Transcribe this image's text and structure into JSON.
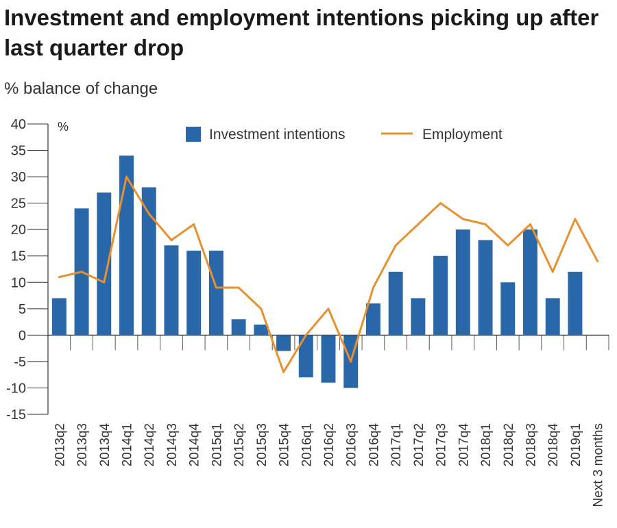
{
  "title": "Investment and employment intentions picking up after last quarter drop",
  "subtitle": "% balance of change",
  "chart_data": {
    "type": "bar",
    "unit_label": "%",
    "categories": [
      "2013q2",
      "2013q3",
      "2013q4",
      "2014q1",
      "2014q2",
      "2014q3",
      "2014q4",
      "2015q1",
      "2015q2",
      "2015q3",
      "2015q4",
      "2016q1",
      "2016q2",
      "2016q3",
      "2016q4",
      "2017q1",
      "2017q2",
      "2017q3",
      "2017q4",
      "2018q1",
      "2018q2",
      "2018q3",
      "2018q4",
      "2019q1",
      "Next 3 months"
    ],
    "series": [
      {
        "name": "Investment intentions",
        "type": "bar",
        "color": "#2a67a8",
        "values": [
          7,
          24,
          27,
          34,
          28,
          17,
          16,
          16,
          3,
          2,
          -3,
          -8,
          -9,
          -10,
          6,
          12,
          7,
          15,
          20,
          18,
          10,
          20,
          7,
          12,
          null
        ]
      },
      {
        "name": "Employment",
        "type": "line",
        "color": "#e8902e",
        "values": [
          11,
          12,
          10,
          30,
          23,
          18,
          21,
          9,
          9,
          5,
          -7,
          0,
          5,
          -5,
          9,
          17,
          21,
          25,
          22,
          21,
          17,
          21,
          12,
          22,
          14
        ]
      }
    ],
    "ylim": [
      -15,
      40
    ],
    "yticks": [
      40,
      35,
      30,
      25,
      20,
      15,
      10,
      5,
      0,
      -5,
      -10,
      -15
    ],
    "legend_position": "top",
    "grid": false
  }
}
